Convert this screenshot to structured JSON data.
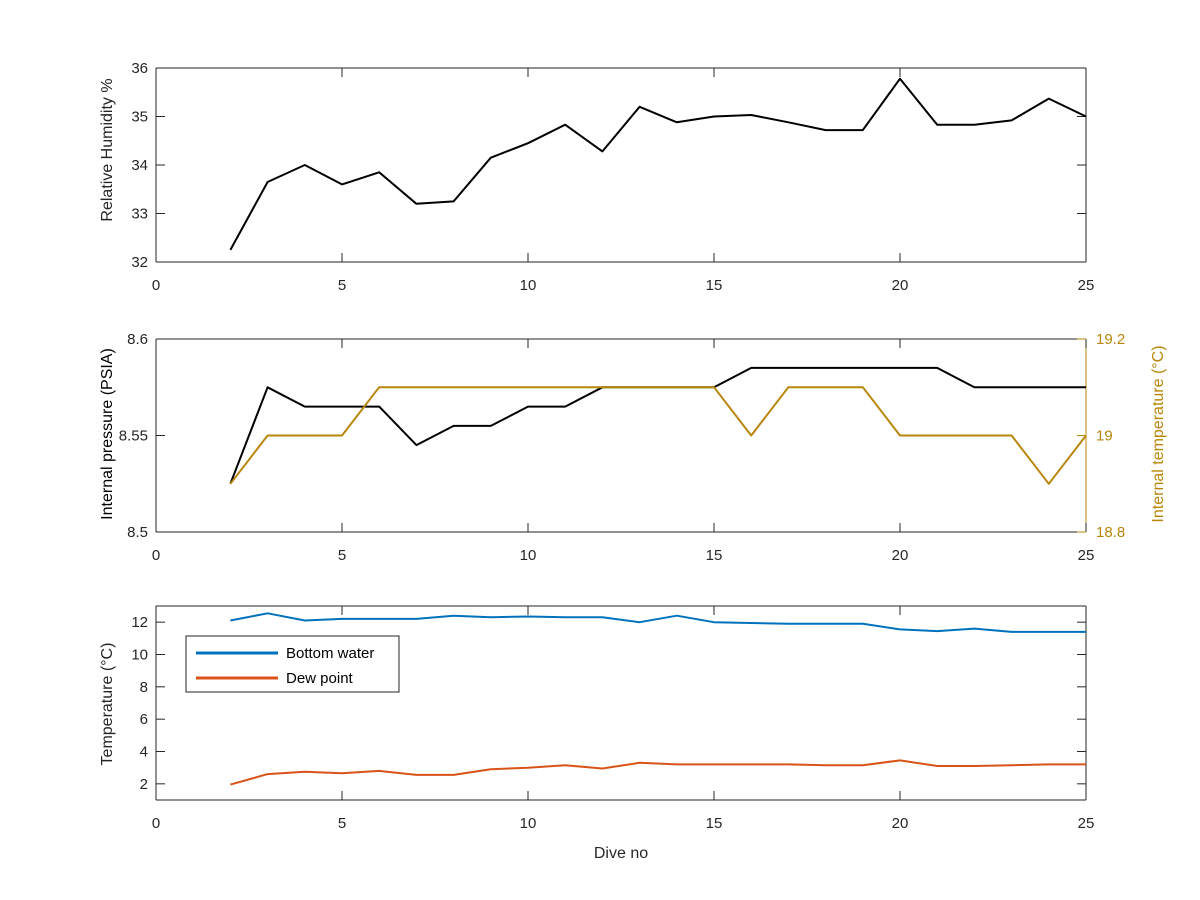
{
  "colors": {
    "black": "#000000",
    "axis": "#262626",
    "temperature_axis": "#b8860b",
    "bottom_water": "#0072bd",
    "dew_point": "#d95319"
  },
  "x_axis": {
    "label": "Dive no",
    "range": [
      0,
      25
    ],
    "ticks": [
      "0",
      "5",
      "10",
      "15",
      "20",
      "25"
    ]
  },
  "chart_data": [
    {
      "type": "line",
      "title": "",
      "xlabel": "",
      "ylabel": "Relative Humidity %",
      "xlim": [
        0,
        25
      ],
      "ylim": [
        32,
        36
      ],
      "yticks": [
        "32",
        "33",
        "34",
        "35",
        "36"
      ],
      "grid": false,
      "x": [
        2,
        3,
        4,
        5,
        6,
        7,
        8,
        9,
        10,
        11,
        12,
        13,
        14,
        15,
        16,
        17,
        18,
        19,
        20,
        21,
        22,
        23,
        24,
        25
      ],
      "series": [
        {
          "color": "#000000",
          "values": [
            32.25,
            33.65,
            34.0,
            33.6,
            33.85,
            33.2,
            33.25,
            34.15,
            34.45,
            34.83,
            34.28,
            35.2,
            34.88,
            35.0,
            35.03,
            34.88,
            34.72,
            34.72,
            35.78,
            34.83,
            34.83,
            34.92,
            35.37,
            35.0
          ]
        }
      ]
    },
    {
      "type": "line",
      "title": "",
      "xlabel": "",
      "ylabel": "Internal pressure (PSIA)",
      "ylabel_right": "Internal temperature (°C)",
      "xlim": [
        0,
        25
      ],
      "ylim": [
        8.5,
        8.6
      ],
      "ylim_right": [
        18.8,
        19.2
      ],
      "yticks": [
        "8.5",
        "8.55",
        "8.6"
      ],
      "yticks_right": [
        "18.8",
        "19",
        "19.2"
      ],
      "grid": false,
      "x": [
        2,
        3,
        4,
        5,
        6,
        7,
        8,
        9,
        10,
        11,
        12,
        13,
        14,
        15,
        16,
        17,
        18,
        19,
        20,
        21,
        22,
        23,
        24,
        25
      ],
      "series": [
        {
          "axis": "left",
          "color": "#000000",
          "values": [
            8.525,
            8.575,
            8.565,
            8.565,
            8.565,
            8.545,
            8.555,
            8.555,
            8.565,
            8.565,
            8.575,
            8.575,
            8.575,
            8.575,
            8.585,
            8.585,
            8.585,
            8.585,
            8.585,
            8.585,
            8.575,
            8.575,
            8.575,
            8.575
          ]
        },
        {
          "axis": "right",
          "color": "#b8860b",
          "values": [
            18.9,
            19.0,
            19.0,
            19.0,
            19.1,
            19.1,
            19.1,
            19.1,
            19.1,
            19.1,
            19.1,
            19.1,
            19.1,
            19.1,
            19.0,
            19.1,
            19.1,
            19.1,
            19.0,
            19.0,
            19.0,
            19.0,
            18.9,
            19.0
          ]
        }
      ]
    },
    {
      "type": "line",
      "title": "",
      "xlabel": "Dive no",
      "ylabel": "Temperature (°C)",
      "xlim": [
        0,
        25
      ],
      "ylim": [
        1,
        13
      ],
      "yticks": [
        "2",
        "4",
        "6",
        "8",
        "10",
        "12"
      ],
      "grid": false,
      "legend_position": "top-left",
      "x": [
        2,
        3,
        4,
        5,
        6,
        7,
        8,
        9,
        10,
        11,
        12,
        13,
        14,
        15,
        16,
        17,
        18,
        19,
        20,
        21,
        22,
        23,
        24,
        25
      ],
      "series": [
        {
          "name": "Bottom water",
          "color": "#0072bd",
          "values": [
            12.1,
            12.55,
            12.1,
            12.2,
            12.2,
            12.2,
            12.4,
            12.3,
            12.35,
            12.3,
            12.3,
            12.0,
            12.4,
            12.0,
            11.95,
            11.9,
            11.9,
            11.9,
            11.55,
            11.45,
            11.6,
            11.4,
            11.4,
            11.4
          ]
        },
        {
          "name": "Dew point",
          "color": "#d95319",
          "values": [
            1.95,
            2.6,
            2.75,
            2.65,
            2.8,
            2.55,
            2.55,
            2.9,
            3.0,
            3.15,
            2.95,
            3.3,
            3.2,
            3.2,
            3.2,
            3.2,
            3.15,
            3.15,
            3.45,
            3.1,
            3.1,
            3.15,
            3.2,
            3.2
          ]
        }
      ]
    }
  ]
}
